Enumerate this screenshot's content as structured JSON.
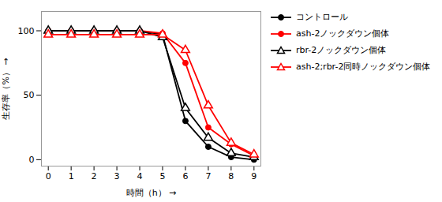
{
  "chart_data": {
    "type": "line",
    "xlabel": "時間（h）",
    "ylabel": "生存率（%）",
    "x": [
      0,
      1,
      2,
      3,
      4,
      5,
      6,
      7,
      8,
      9
    ],
    "series": [
      {
        "name": "コントロール",
        "color": "#000000",
        "marker": "circle",
        "values": [
          100,
          100,
          100,
          100,
          100,
          97,
          30,
          10,
          2,
          0
        ]
      },
      {
        "name": "ash-2ノックダウン個体",
        "color": "#ff0000",
        "marker": "circle",
        "values": [
          100,
          100,
          100,
          100,
          100,
          98,
          75,
          25,
          12,
          3
        ]
      },
      {
        "name": "rbr-2ノックダウン個体",
        "color": "#000000",
        "marker": "open-triangle",
        "values": [
          100,
          100,
          100,
          100,
          100,
          95,
          40,
          17,
          5,
          2
        ]
      },
      {
        "name": "ash-2;rbr-2同時ノックダウン個体",
        "color": "#ff0000",
        "marker": "open-triangle",
        "values": [
          97,
          97,
          97,
          97,
          97,
          97,
          85,
          42,
          13,
          4
        ]
      }
    ],
    "xlim": [
      -0.3,
      9.3
    ],
    "ylim": [
      -5,
      115
    ],
    "xticks": [
      0,
      1,
      2,
      3,
      4,
      5,
      6,
      7,
      8,
      9
    ],
    "yticks": [
      0,
      50,
      100
    ],
    "legend": "right"
  }
}
